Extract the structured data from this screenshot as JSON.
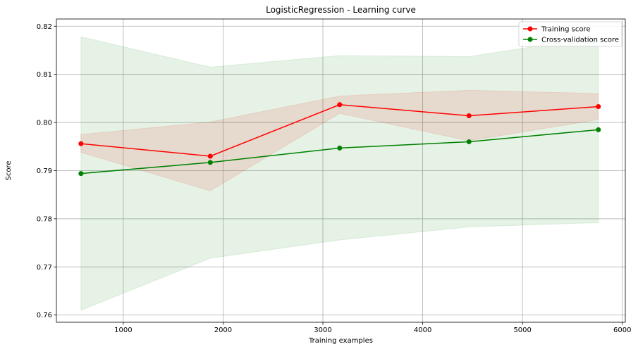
{
  "chart_data": {
    "type": "line",
    "title": "LogisticRegression - Learning curve",
    "xlabel": "Training examples",
    "ylabel": "Score",
    "xlim": [
      330,
      6030
    ],
    "ylim": [
      0.7585,
      0.8215
    ],
    "xticks": [
      1000,
      2000,
      3000,
      4000,
      5000,
      6000
    ],
    "yticks": [
      0.76,
      0.77,
      0.78,
      0.79,
      0.8,
      0.81,
      0.82
    ],
    "ytick_labels": [
      "0.76",
      "0.77",
      "0.78",
      "0.79",
      "0.80",
      "0.81",
      "0.82"
    ],
    "grid": true,
    "legend_position": "top-right",
    "x": [
      576,
      1872,
      3168,
      4464,
      5760
    ],
    "series": [
      {
        "name": "Training score",
        "color": "#ff0000",
        "values": [
          0.7956,
          0.793,
          0.8037,
          0.8014,
          0.8033
        ],
        "band_lower": [
          0.7938,
          0.7858,
          0.8019,
          0.7962,
          0.8006
        ],
        "band_upper": [
          0.7975,
          0.8001,
          0.8055,
          0.8067,
          0.806
        ]
      },
      {
        "name": "Cross-validation score",
        "color": "#008000",
        "values": [
          0.7894,
          0.7917,
          0.7947,
          0.796,
          0.7985
        ],
        "band_lower": [
          0.761,
          0.7718,
          0.7756,
          0.7783,
          0.7792
        ],
        "band_upper": [
          0.8178,
          0.8115,
          0.8139,
          0.8137,
          0.8178
        ]
      }
    ]
  }
}
